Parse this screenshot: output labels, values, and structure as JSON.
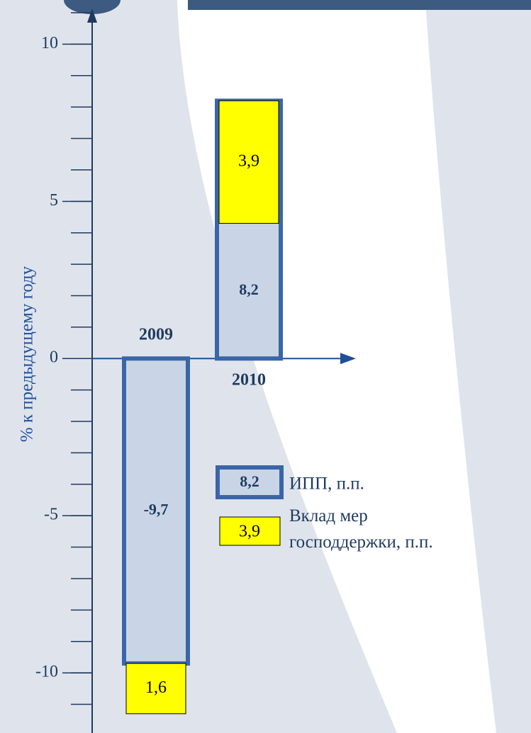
{
  "chart_data": {
    "type": "bar",
    "y_label": "% к предыдущему году",
    "categories": [
      "2009",
      "2010"
    ],
    "series": [
      {
        "name": "ИПП, п.п.",
        "color": "#c9d5e6",
        "edge_color": "#3a66a8",
        "values": [
          -9.7,
          8.2
        ],
        "value_labels": [
          "-9,7",
          "8,2"
        ]
      },
      {
        "name": "Вклад мер господдержки, п.п.",
        "color": "#ffff00",
        "edge_color": "#000000",
        "values": [
          1.6,
          3.9
        ],
        "value_labels": [
          "1,6",
          "3,9"
        ]
      }
    ],
    "ylim": [
      -11.8,
      11
    ],
    "yticks": [
      10,
      5,
      0,
      -5,
      -10
    ],
    "minor_tick_step": 1
  }
}
